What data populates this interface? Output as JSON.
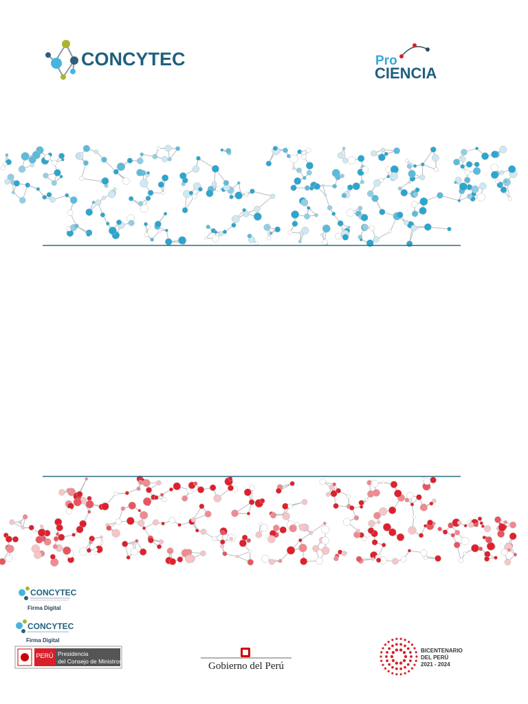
{
  "header": {
    "left_logo": "CONCYTEC",
    "right_logo": {
      "line1": "Pro",
      "line2": "CIENCIA"
    }
  },
  "footer": {
    "signatures": [
      {
        "logo": "CONCYTEC",
        "label": "Firma Digital"
      },
      {
        "logo": "CONCYTEC",
        "label": "Firma Digital"
      }
    ],
    "pcm": {
      "country": "PERÚ",
      "entity": [
        "Presidencia",
        "del Consejo de Ministros"
      ]
    },
    "government": "Gobierno del Perú",
    "bicentenario": [
      "BICENTENARIO",
      "DEL PERÚ",
      "2021 - 2024"
    ]
  }
}
